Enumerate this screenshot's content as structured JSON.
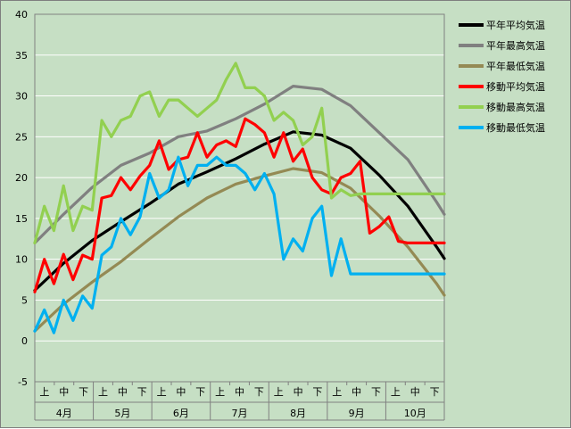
{
  "chart_data": {
    "type": "line",
    "title": "",
    "xlabel": "",
    "ylabel": "",
    "ylim": [
      -5,
      40
    ],
    "yticks": [
      -5,
      0,
      5,
      10,
      15,
      20,
      25,
      30,
      35,
      40
    ],
    "grid": true,
    "legend_position": "right",
    "months": [
      "4月",
      "5月",
      "6月",
      "7月",
      "8月",
      "9月",
      "10月"
    ],
    "decades": [
      "上",
      "中",
      "下"
    ],
    "x_start_day": 0,
    "x_end_day": 214,
    "series": [
      {
        "name": "平年平均気温",
        "color": "#000000",
        "x": [
          0,
          15,
          30,
          45,
          60,
          75,
          90,
          105,
          120,
          135,
          150,
          165,
          180,
          195,
          210,
          214
        ],
        "values": [
          6.2,
          9.5,
          12.3,
          14.6,
          16.8,
          19.2,
          20.7,
          22.3,
          24.1,
          25.6,
          25.2,
          23.6,
          20.3,
          16.5,
          11.5,
          10.1
        ]
      },
      {
        "name": "平年最高気温",
        "color": "#808080",
        "x": [
          0,
          15,
          30,
          45,
          60,
          75,
          90,
          105,
          120,
          135,
          150,
          165,
          180,
          195,
          210,
          214
        ],
        "values": [
          12.0,
          15.5,
          18.8,
          21.5,
          23.0,
          25.0,
          25.7,
          27.2,
          29.0,
          31.2,
          30.8,
          28.8,
          25.5,
          22.2,
          17.0,
          15.5
        ]
      },
      {
        "name": "平年最低気温",
        "color": "#948a54",
        "x": [
          0,
          15,
          30,
          45,
          60,
          75,
          90,
          105,
          120,
          135,
          150,
          165,
          180,
          195,
          210,
          214
        ],
        "values": [
          1.2,
          4.5,
          7.2,
          9.7,
          12.5,
          15.2,
          17.5,
          19.2,
          20.2,
          21.1,
          20.6,
          18.7,
          15.3,
          11.5,
          7.0,
          5.6
        ]
      },
      {
        "name": "移動平均気温",
        "color": "#ff0000",
        "x": [
          0,
          5,
          10,
          15,
          20,
          25,
          30,
          35,
          40,
          45,
          50,
          55,
          60,
          65,
          70,
          75,
          80,
          85,
          90,
          95,
          100,
          105,
          110,
          115,
          120,
          125,
          130,
          135,
          140,
          145,
          150,
          155,
          160,
          165,
          170,
          175,
          180,
          185,
          190,
          195,
          200,
          205,
          210,
          214
        ],
        "values": [
          6,
          10,
          7,
          10.6,
          7.5,
          10.5,
          10,
          17.5,
          17.8,
          20,
          18.5,
          20.2,
          21.5,
          24.5,
          21,
          22.2,
          22.5,
          25.5,
          22.5,
          24,
          24.5,
          23.8,
          27.2,
          26.5,
          25.5,
          22.5,
          25.5,
          22,
          23.5,
          20,
          18.5,
          18,
          20,
          20.5,
          22,
          13.2,
          14,
          15.2,
          12.2,
          12,
          12,
          12,
          12,
          12
        ]
      },
      {
        "name": "移動最高気温",
        "color": "#92d050",
        "x": [
          0,
          5,
          10,
          15,
          20,
          25,
          30,
          35,
          40,
          45,
          50,
          55,
          60,
          65,
          70,
          75,
          80,
          85,
          90,
          95,
          100,
          105,
          110,
          115,
          120,
          125,
          130,
          135,
          140,
          145,
          150,
          155,
          160,
          165,
          170,
          175,
          180,
          185,
          190,
          195,
          200,
          205,
          210,
          214
        ],
        "values": [
          12,
          16.5,
          13.5,
          19,
          13.5,
          16.5,
          16,
          27,
          25,
          27,
          27.5,
          30,
          30.5,
          27.5,
          29.5,
          29.5,
          28.5,
          27.5,
          28.5,
          29.5,
          32,
          34,
          31,
          31,
          30,
          27,
          28,
          27,
          24,
          25,
          28.5,
          17.5,
          18.5,
          17.8,
          18,
          18,
          18,
          18,
          18,
          18,
          18,
          18,
          18,
          18
        ]
      },
      {
        "name": "移動最低気温",
        "color": "#00b0f0",
        "x": [
          0,
          5,
          10,
          15,
          20,
          25,
          30,
          35,
          40,
          45,
          50,
          55,
          60,
          65,
          70,
          75,
          80,
          85,
          90,
          95,
          100,
          105,
          110,
          115,
          120,
          125,
          130,
          135,
          140,
          145,
          150,
          155,
          160,
          165,
          170,
          175,
          180,
          185,
          190,
          195,
          200,
          205,
          210,
          214
        ],
        "values": [
          1.2,
          3.8,
          1,
          5,
          2.5,
          5.5,
          4,
          10.5,
          11.5,
          15,
          13,
          15.2,
          20.5,
          17.5,
          18.5,
          22.5,
          19,
          21.5,
          21.5,
          22.5,
          21.5,
          21.5,
          20.5,
          18.5,
          20.5,
          18,
          10,
          12.5,
          11,
          15,
          16.5,
          8,
          12.5,
          8.2,
          8.2,
          8.2,
          8.2,
          8.2,
          8.2,
          8.2,
          8.2,
          8.2,
          8.2,
          8.2
        ]
      }
    ]
  }
}
